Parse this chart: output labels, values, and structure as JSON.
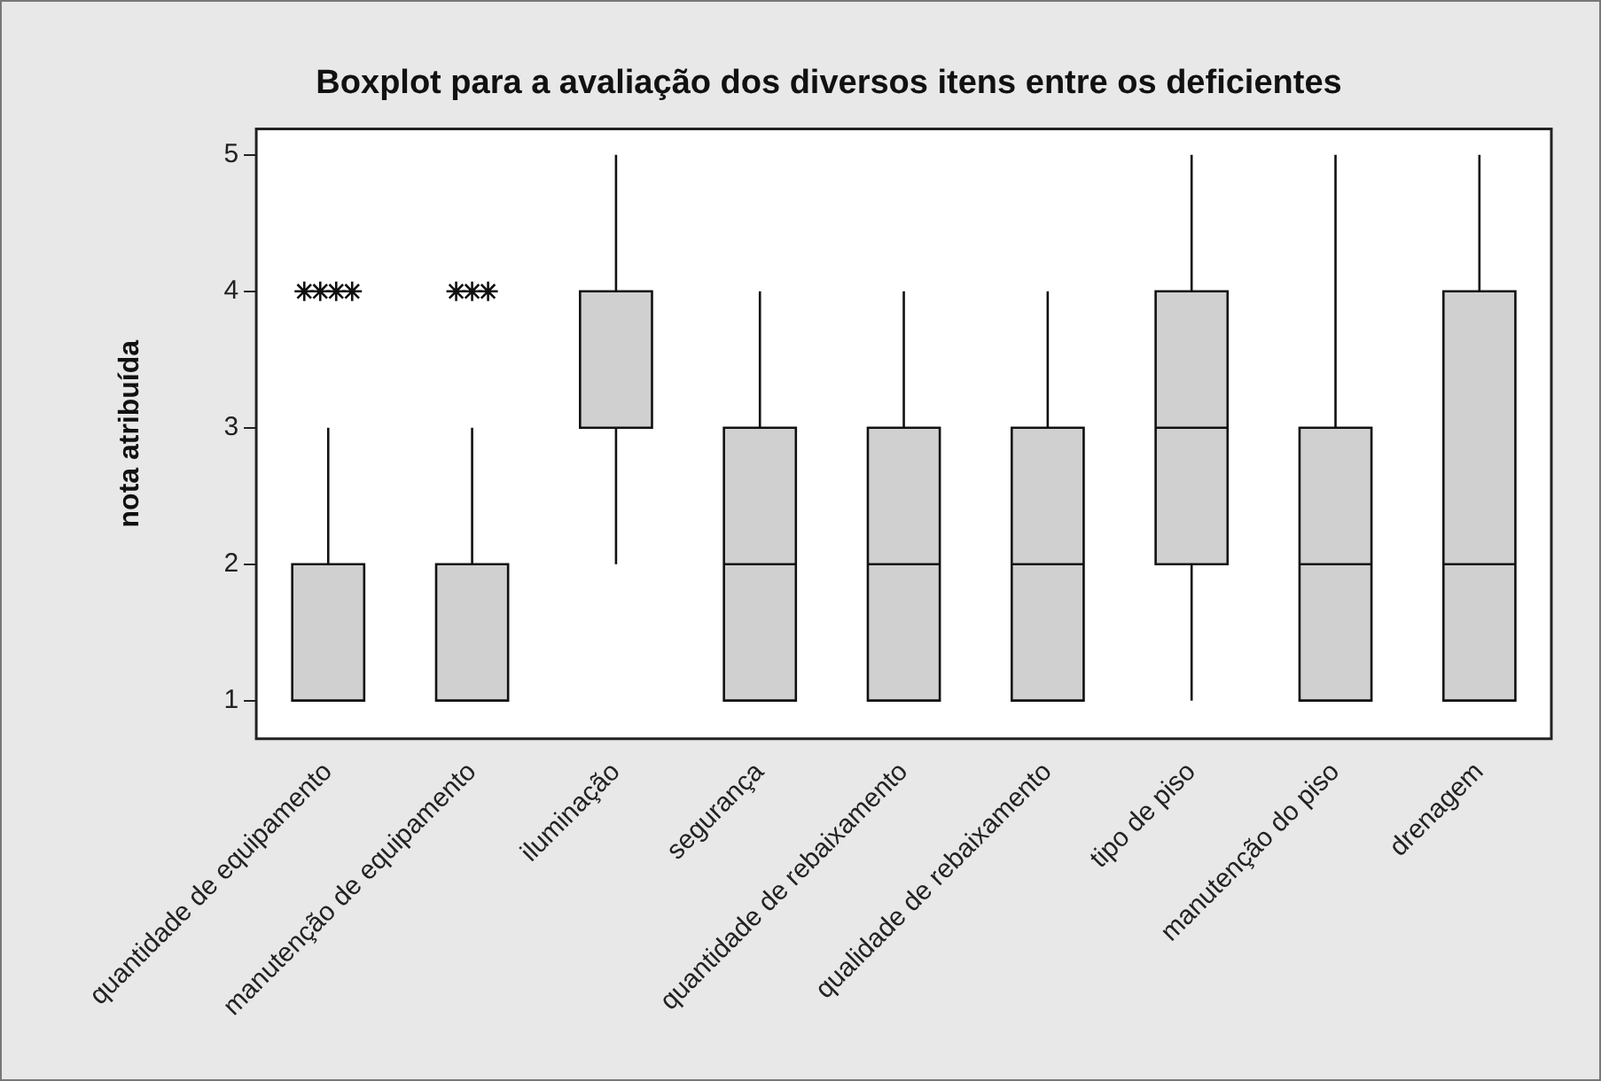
{
  "chart_data": {
    "type": "box",
    "title": "Boxplot para a avaliação dos diversos itens entre os deficientes",
    "ylabel": "nota atribuída",
    "categories": [
      "quantidade de equipamento",
      "manutenção de equipamento",
      "iluminação",
      "segurança",
      "quantidade de rebaixamento",
      "qualidade de rebaixamento",
      "tipo de piso",
      "manutenção do piso",
      "drenagem"
    ],
    "boxes": [
      {
        "low": 1,
        "q1": 1,
        "median": 1,
        "q3": 2,
        "high": 3,
        "outliers": [
          4,
          4,
          4,
          4
        ]
      },
      {
        "low": 1,
        "q1": 1,
        "median": 1,
        "q3": 2,
        "high": 3,
        "outliers": [
          4,
          4,
          4
        ]
      },
      {
        "low": 2,
        "q1": 3,
        "median": 4,
        "q3": 4,
        "high": 5
      },
      {
        "low": 1,
        "q1": 1,
        "median": 2,
        "q3": 3,
        "high": 4
      },
      {
        "low": 1,
        "q1": 1,
        "median": 2,
        "q3": 3,
        "high": 4
      },
      {
        "low": 1,
        "q1": 1,
        "median": 2,
        "q3": 3,
        "high": 4
      },
      {
        "low": 1,
        "q1": 2,
        "median": 3,
        "q3": 4,
        "high": 5
      },
      {
        "low": 1,
        "q1": 1,
        "median": 2,
        "q3": 3,
        "high": 5
      },
      {
        "low": 1,
        "q1": 1,
        "median": 2,
        "q3": 4,
        "high": 5
      }
    ],
    "color": "#d0d0d0",
    "marker": "star",
    "grid": false,
    "ylim": [
      0.72,
      5.19
    ],
    "yticks": [
      1,
      2,
      3,
      4,
      5
    ]
  }
}
